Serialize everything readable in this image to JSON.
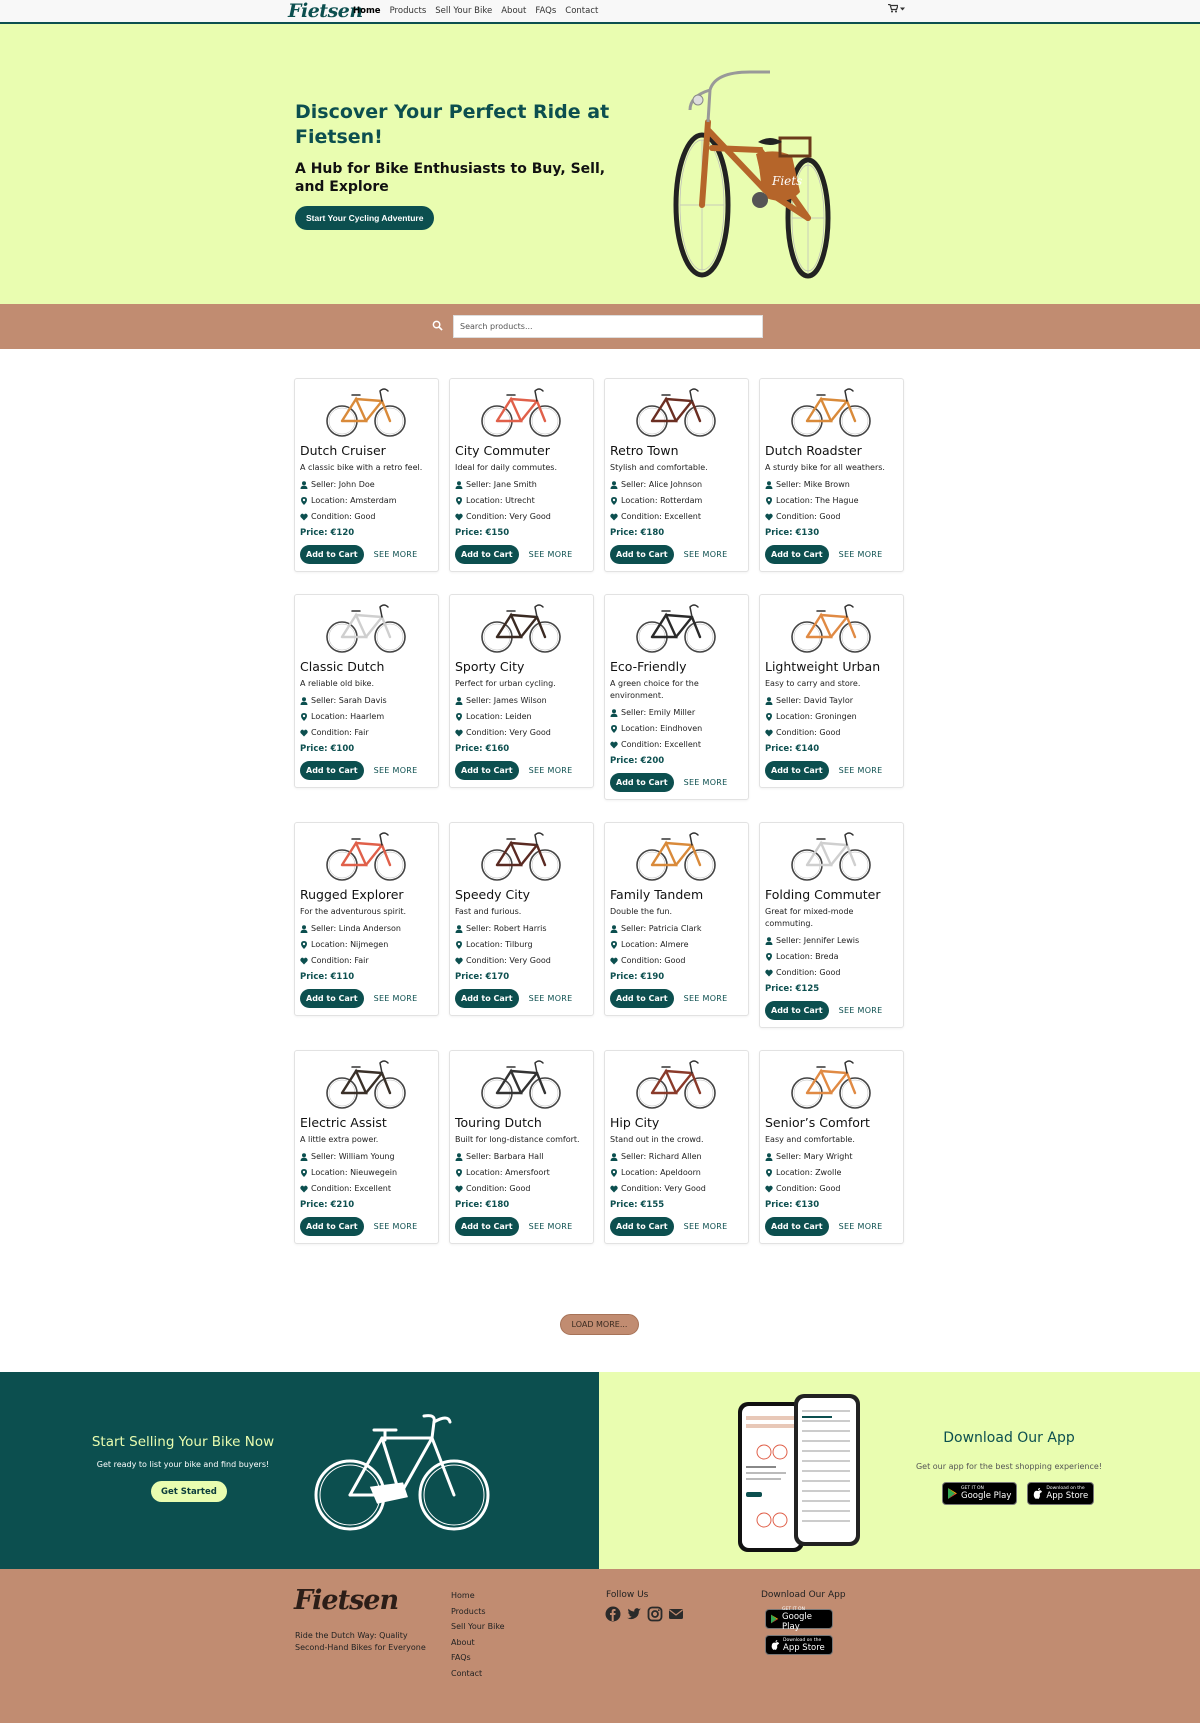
{
  "nav": {
    "brand": "Fietsen",
    "links": [
      "Home",
      "Products",
      "Sell Your Bike",
      "About",
      "FAQs",
      "Contact"
    ],
    "cart_icon": "cart-icon"
  },
  "hero": {
    "title": "Discover Your Perfect Ride at Fietsen!",
    "subtitle": "A Hub for Bike Enthusiasts to Buy, Sell, and Explore",
    "cta": "Start Your Cycling Adventure"
  },
  "search": {
    "placeholder": "Search products..."
  },
  "products": [
    {
      "title": "Dutch Cruiser",
      "desc": "A classic bike with a retro feel.",
      "seller": "Seller: John Doe",
      "location": "Location: Amsterdam",
      "condition": "Condition: Good",
      "price": "Price: €120",
      "color": "#d98a3a"
    },
    {
      "title": "City Commuter",
      "desc": "Ideal for daily commutes.",
      "seller": "Seller: Jane Smith",
      "location": "Location: Utrecht",
      "condition": "Condition: Very Good",
      "price": "Price: €150",
      "color": "#e0604a"
    },
    {
      "title": "Retro Town",
      "desc": "Stylish and comfortable.",
      "seller": "Seller: Alice Johnson",
      "location": "Location: Rotterdam",
      "condition": "Condition: Excellent",
      "price": "Price: €180",
      "color": "#6b2e22"
    },
    {
      "title": "Dutch Roadster",
      "desc": "A sturdy bike for all weathers.",
      "seller": "Seller: Mike Brown",
      "location": "Location: The Hague",
      "condition": "Condition: Good",
      "price": "Price: €130",
      "color": "#d98a3a"
    },
    {
      "title": "Classic Dutch",
      "desc": "A reliable old bike.",
      "seller": "Seller: Sarah Davis",
      "location": "Location: Haarlem",
      "condition": "Condition: Fair",
      "price": "Price: €100",
      "color": "#cfcfcf"
    },
    {
      "title": "Sporty City",
      "desc": "Perfect for urban cycling.",
      "seller": "Seller: James Wilson",
      "location": "Location: Leiden",
      "condition": "Condition: Very Good",
      "price": "Price: €160",
      "color": "#3a2a22"
    },
    {
      "title": "Eco-Friendly",
      "desc": "A green choice for the environment.",
      "seller": "Seller: Emily Miller",
      "location": "Location: Eindhoven",
      "condition": "Condition: Excellent",
      "price": "Price: €200",
      "color": "#2a2a2a"
    },
    {
      "title": "Lightweight Urban",
      "desc": "Easy to carry and store.",
      "seller": "Seller: David Taylor",
      "location": "Location: Groningen",
      "condition": "Condition: Good",
      "price": "Price: €140",
      "color": "#e08a44"
    },
    {
      "title": "Rugged Explorer",
      "desc": "For the adventurous spirit.",
      "seller": "Seller: Linda Anderson",
      "location": "Location: Nijmegen",
      "condition": "Condition: Fair",
      "price": "Price: €110",
      "color": "#e0604a"
    },
    {
      "title": "Speedy City",
      "desc": "Fast and furious.",
      "seller": "Seller: Robert Harris",
      "location": "Location: Tilburg",
      "condition": "Condition: Very Good",
      "price": "Price: €170",
      "color": "#5a2a22"
    },
    {
      "title": "Family Tandem",
      "desc": "Double the fun.",
      "seller": "Seller: Patricia Clark",
      "location": "Location: Almere",
      "condition": "Condition: Good",
      "price": "Price: €190",
      "color": "#d98a3a"
    },
    {
      "title": "Folding Commuter",
      "desc": "Great for mixed-mode commuting.",
      "seller": "Seller: Jennifer Lewis",
      "location": "Location: Breda",
      "condition": "Condition: Good",
      "price": "Price: €125",
      "color": "#cfcfcf"
    },
    {
      "title": "Electric Assist",
      "desc": "A little extra power.",
      "seller": "Seller: William Young",
      "location": "Location: Nieuwegein",
      "condition": "Condition: Excellent",
      "price": "Price: €210",
      "color": "#3a3028"
    },
    {
      "title": "Touring Dutch",
      "desc": "Built for long-distance comfort.",
      "seller": "Seller: Barbara Hall",
      "location": "Location: Amersfoort",
      "condition": "Condition: Good",
      "price": "Price: €180",
      "color": "#333333"
    },
    {
      "title": "Hip City",
      "desc": "Stand out in the crowd.",
      "seller": "Seller: Richard Allen",
      "location": "Location: Apeldoorn",
      "condition": "Condition: Very Good",
      "price": "Price: €155",
      "color": "#8a3a2a"
    },
    {
      "title": "Senior’s Comfort",
      "desc": "Easy and comfortable.",
      "seller": "Seller: Mary Wright",
      "location": "Location: Zwolle",
      "condition": "Condition: Good",
      "price": "Price: €130",
      "color": "#e08a44"
    }
  ],
  "card_labels": {
    "add_to_cart": "Add to Cart",
    "see_more": "SEE MORE"
  },
  "load_more": "LOAD MORE...",
  "sell": {
    "title": "Start Selling Your Bike Now",
    "text": "Get ready to list your bike and find buyers!",
    "button": "Get Started"
  },
  "app": {
    "title": "Download Our App",
    "text": "Get our app for the best shopping experience!",
    "google_small": "GET IT ON",
    "google_big": "Google Play",
    "apple_small": "Download on the",
    "apple_big": "App Store"
  },
  "footer": {
    "logo": "Fietsen",
    "tagline": "Ride the Dutch Way: Quality Second-Hand Bikes for Everyone",
    "links": [
      "Home",
      "Products",
      "Sell Your Bike",
      "About",
      "FAQs",
      "Contact"
    ],
    "follow_title": "Follow Us",
    "social_icons": [
      "facebook-icon",
      "twitter-icon",
      "instagram-icon",
      "envelope-icon"
    ],
    "download_title": "Download Our App"
  },
  "colors": {
    "teal": "#0c4f4f",
    "lime": "#e9fdb0",
    "tan": "#c18c71"
  }
}
